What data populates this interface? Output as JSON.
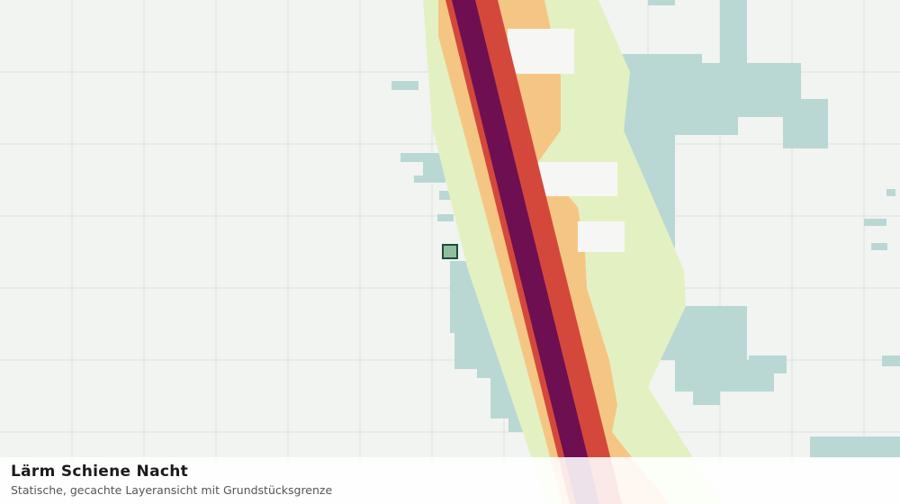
{
  "legend": {
    "title": "Lärm Schiene Nacht",
    "subtitle": "Statische, gecachte Layeransicht mit Grundstücksgrenze"
  }
}
